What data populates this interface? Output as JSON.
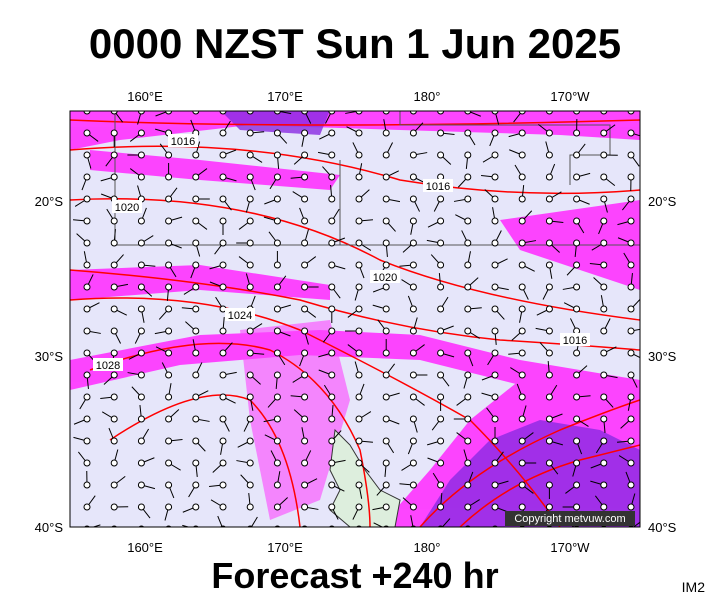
{
  "header": {
    "title": "0000 NZST Sun 1 Jun 2025"
  },
  "map": {
    "lon_labels": [
      "160°E",
      "170°E",
      "180°",
      "170°W"
    ],
    "lat_labels": [
      "20°S",
      "30°S",
      "40°S"
    ],
    "isobar_labels": [
      "1016",
      "1016",
      "1016",
      "1020",
      "1020",
      "1024",
      "1028"
    ],
    "copyright": "Copyright metvuw.com"
  },
  "footer": {
    "forecast": "Forecast +240 hr",
    "code": "IM2"
  }
}
